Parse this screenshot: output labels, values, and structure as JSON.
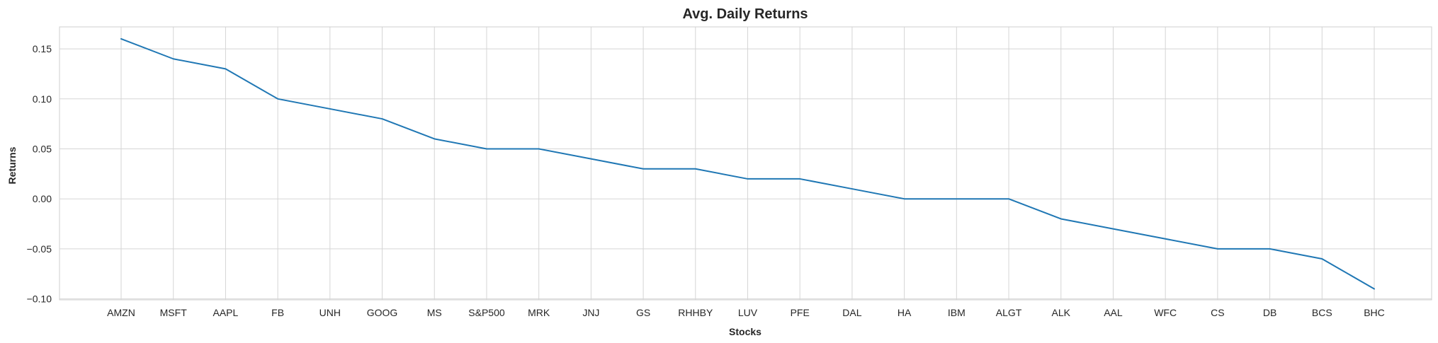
{
  "chart_data": {
    "type": "line",
    "title": "Avg. Daily Returns",
    "xlabel": "Stocks",
    "ylabel": "Returns",
    "categories": [
      "AMZN",
      "MSFT",
      "AAPL",
      "FB",
      "UNH",
      "GOOG",
      "MS",
      "S&P500",
      "MRK",
      "JNJ",
      "GS",
      "RHHBY",
      "LUV",
      "PFE",
      "DAL",
      "HA",
      "IBM",
      "ALGT",
      "ALK",
      "AAL",
      "WFC",
      "CS",
      "DB",
      "BCS",
      "BHC"
    ],
    "values": [
      0.16,
      0.14,
      0.13,
      0.1,
      0.09,
      0.08,
      0.06,
      0.05,
      0.05,
      0.04,
      0.03,
      0.03,
      0.02,
      0.02,
      0.01,
      0.0,
      0.0,
      0.0,
      -0.02,
      -0.03,
      -0.04,
      -0.05,
      -0.05,
      -0.06,
      -0.09
    ],
    "ylim": [
      -0.101,
      0.172
    ],
    "yticks": [
      "0.15",
      "0.10",
      "0.05",
      "0.00",
      "−0.05",
      "−0.10"
    ],
    "ytick_values": [
      0.15,
      0.1,
      0.05,
      0.0,
      -0.05,
      -0.1
    ],
    "grid": true,
    "line_color": "#1f77b4"
  }
}
